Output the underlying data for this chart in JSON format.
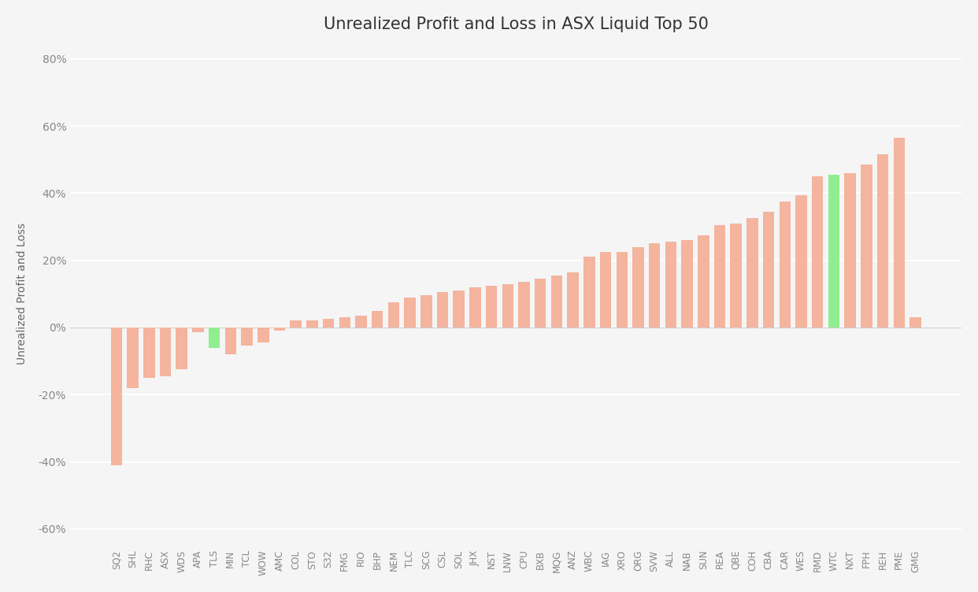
{
  "title": "Unrealized Profit and Loss in ASX Liquid Top 50",
  "ylabel": "Unrealized Profit and Loss",
  "categories": [
    "SQ2",
    "SHL",
    "RHC",
    "ASX",
    "WDS",
    "APA",
    "TLS",
    "MIN",
    "TCL",
    "WOW",
    "AMC",
    "COL",
    "STO",
    "S32",
    "FMG",
    "RIO",
    "BHP",
    "NEM",
    "TLC",
    "SCG",
    "CSL",
    "SOL",
    "JHX",
    "NST",
    "LNW",
    "CPU",
    "BXB",
    "MQG",
    "ANZ",
    "WBC",
    "IAG",
    "XRO",
    "ORG",
    "SVW",
    "ALL",
    "NAB",
    "SUN",
    "REA",
    "QBE",
    "COH",
    "CBA",
    "CAR",
    "WES",
    "RMD",
    "WTC",
    "NXT",
    "FPH",
    "REH",
    "PME",
    "GMG"
  ],
  "values": [
    -41.0,
    -18.0,
    -15.0,
    -14.5,
    -12.5,
    -1.5,
    -6.0,
    -8.0,
    -5.5,
    -4.5,
    -1.0,
    2.0,
    2.0,
    2.5,
    3.0,
    3.5,
    5.0,
    7.5,
    9.0,
    9.5,
    10.5,
    11.0,
    12.0,
    12.5,
    13.0,
    13.5,
    14.5,
    15.5,
    16.5,
    21.0,
    22.5,
    22.5,
    24.0,
    25.0,
    25.5,
    26.0,
    27.5,
    30.5,
    31.0,
    32.5,
    34.5,
    37.5,
    39.5,
    45.0,
    45.5,
    46.0,
    48.5,
    51.5,
    56.5,
    3.0
  ],
  "bar_color_salmon": "#F4B49E",
  "bar_color_green": "#90EE90",
  "special_green_bars": [
    "TLS",
    "WTC"
  ],
  "ylim": [
    -65,
    85
  ],
  "yticks": [
    -60,
    -40,
    -20,
    0,
    20,
    40,
    60,
    80
  ],
  "ytick_labels": [
    "-60%",
    "-40%",
    "-20%",
    "0%",
    "20%",
    "40%",
    "60%",
    "80%"
  ],
  "background_color": "#f5f5f5",
  "grid_color": "#ffffff",
  "title_fontsize": 15,
  "axis_fontsize": 10,
  "tick_fontsize": 8.5
}
